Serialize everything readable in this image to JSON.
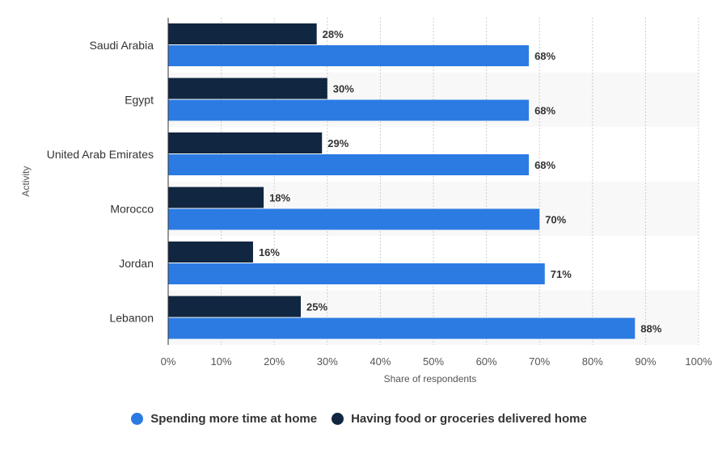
{
  "chart_data": {
    "type": "bar",
    "orientation": "horizontal",
    "categories": [
      "Saudi Arabia",
      "Egypt",
      "United Arab Emirates",
      "Morocco",
      "Jordan",
      "Lebanon"
    ],
    "series": [
      {
        "name": "Having food or groceries delivered home",
        "values": [
          28,
          30,
          29,
          18,
          16,
          25
        ],
        "labels": [
          "28%",
          "30%",
          "29%",
          "18%",
          "16%",
          "25%"
        ]
      },
      {
        "name": "Spending more time at home",
        "values": [
          68,
          68,
          68,
          70,
          71,
          88
        ],
        "labels": [
          "68%",
          "68%",
          "68%",
          "70%",
          "71%",
          "88%"
        ]
      }
    ],
    "xlim": [
      0,
      100
    ],
    "xticks": [
      "0%",
      "10%",
      "20%",
      "30%",
      "40%",
      "50%",
      "60%",
      "70%",
      "80%",
      "90%",
      "100%"
    ],
    "xlabel": "Share of respondents",
    "ylabel": "Activity",
    "grid": true,
    "legend_position": "bottom"
  },
  "legend": [
    {
      "label": "Spending more time at home",
      "color": "#2b7be3"
    },
    {
      "label": "Having food or groceries delivered home",
      "color": "#112640"
    }
  ],
  "colors": {
    "spending": "#2b7be3",
    "delivery": "#112640",
    "band": "#f8f8f8",
    "grid": "#cccccc",
    "axis": "#333333"
  }
}
